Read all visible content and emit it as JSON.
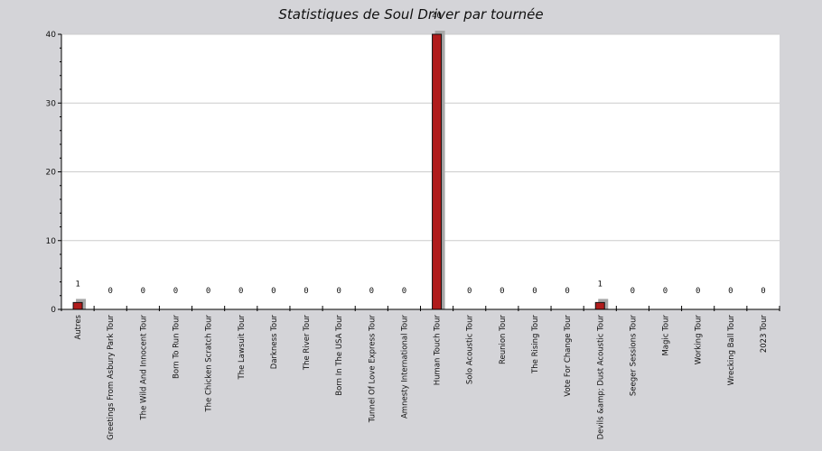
{
  "chart_data": {
    "type": "bar",
    "title": "Statistiques de Soul Driver par tournée",
    "xlabel": "",
    "ylabel": "",
    "ylim": [
      0,
      40
    ],
    "yticks": [
      0,
      10,
      20,
      30,
      40
    ],
    "grid": true,
    "legend": "none",
    "categories": [
      "Autres",
      "Greetings From Asbury Park Tour",
      "The Wild And Innocent Tour",
      "Born To Run Tour",
      "The Chicken Scratch Tour",
      "The Lawsuit Tour",
      "Darkness Tour",
      "The River Tour",
      "Born In The USA Tour",
      "Tunnel Of Love Express Tour",
      "Amnesty International Tour",
      "Human Touch Tour",
      "Solo Acoustic Tour",
      "Reunion Tour",
      "The Rising Tour",
      "Vote For Change Tour",
      "Devils &amp; Dust Acoustic Tour",
      "Seeger Sessions Tour",
      "Magic Tour",
      "Working Tour",
      "Wrecking Ball Tour",
      "2023 Tour"
    ],
    "values": [
      1,
      0,
      0,
      0,
      0,
      0,
      0,
      0,
      0,
      0,
      0,
      40,
      0,
      0,
      0,
      0,
      1,
      0,
      0,
      0,
      0,
      0
    ],
    "colors": {
      "bar": "#b01c1c",
      "bar_border": "#111111",
      "shadow": "#a8a8a8",
      "plot_bg": "#ffffff",
      "page_bg": "#d4d4d8",
      "grid": "#cccccc"
    }
  }
}
